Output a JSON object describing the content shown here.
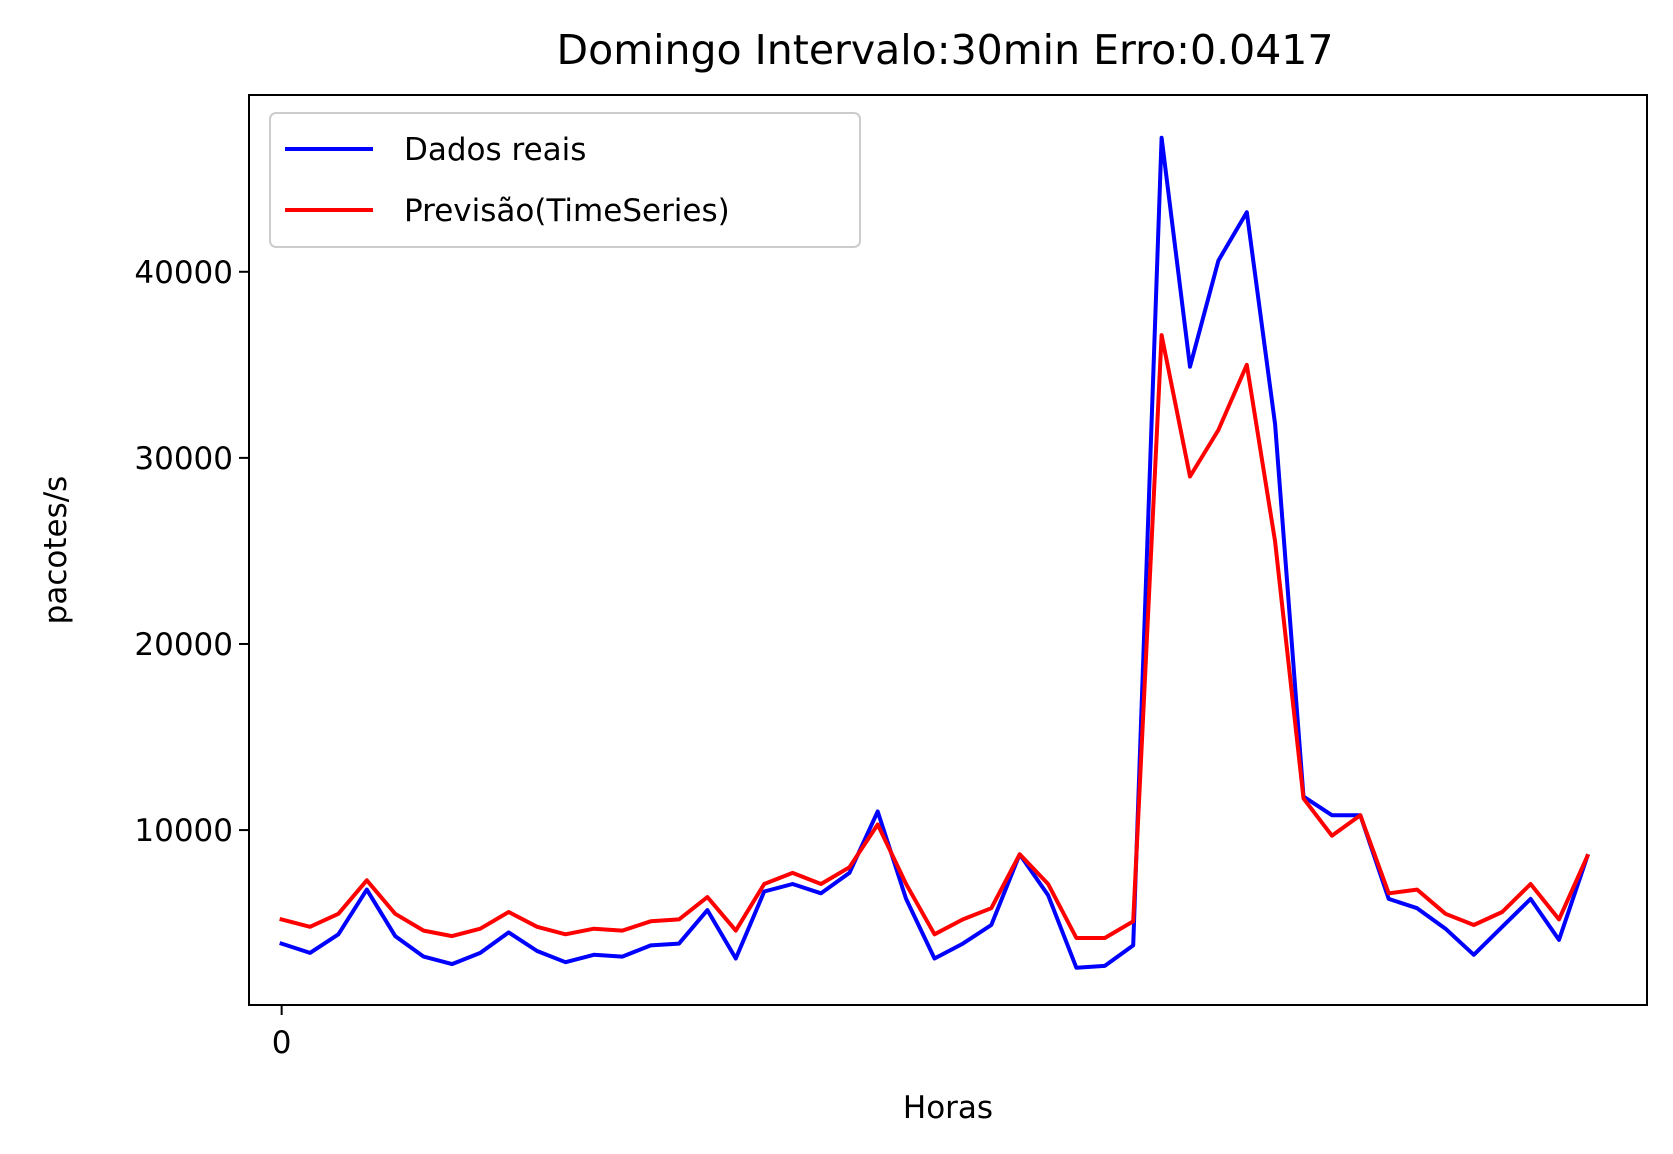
{
  "chart_data": {
    "type": "line",
    "title": "Domingo Intervalo:30min Erro:0.0417",
    "xlabel": "Horas",
    "ylabel": "pacotes/s",
    "xlim": [
      -1.15,
      48.1
    ],
    "ylim": [
      600,
      49500
    ],
    "x_ticks": [
      0
    ],
    "y_ticks": [
      10000,
      20000,
      30000,
      40000
    ],
    "grid": false,
    "legend_position": "upper-left",
    "x": [
      0,
      1,
      2,
      3,
      4,
      5,
      6,
      7,
      8,
      9,
      10,
      11,
      12,
      13,
      14,
      15,
      16,
      17,
      18,
      19,
      20,
      21,
      22,
      23,
      24,
      25,
      26,
      27,
      28,
      29,
      30,
      31,
      32,
      33,
      34,
      35,
      36,
      37,
      38,
      39,
      40,
      41,
      42,
      43,
      44,
      45,
      46
    ],
    "series": [
      {
        "name": "Dados reais",
        "color": "#0000ff",
        "values": [
          3900,
          3400,
          4400,
          6800,
          4300,
          3200,
          2800,
          3400,
          4500,
          3500,
          2900,
          3300,
          3200,
          3800,
          3900,
          5700,
          3100,
          6700,
          7100,
          6600,
          7700,
          11000,
          6300,
          3100,
          3900,
          4900,
          8700,
          6500,
          2600,
          2700,
          3800,
          47200,
          34900,
          40600,
          43200,
          31800,
          11800,
          10800,
          10800,
          6300,
          5800,
          4700,
          3300,
          4800,
          6300,
          4100,
          8600
        ]
      },
      {
        "name": "Previsão(TimeSeries)",
        "color": "#ff0000",
        "values": [
          5200,
          4800,
          5500,
          7300,
          5500,
          4600,
          4300,
          4700,
          5600,
          4800,
          4400,
          4700,
          4600,
          5100,
          5200,
          6400,
          4600,
          7100,
          7700,
          7100,
          8000,
          10300,
          7100,
          4400,
          5200,
          5800,
          8700,
          7100,
          4200,
          4200,
          5100,
          36600,
          29000,
          31500,
          35000,
          25500,
          11700,
          9700,
          10800,
          6600,
          6800,
          5500,
          4900,
          5600,
          7100,
          5200,
          8600
        ]
      }
    ]
  }
}
